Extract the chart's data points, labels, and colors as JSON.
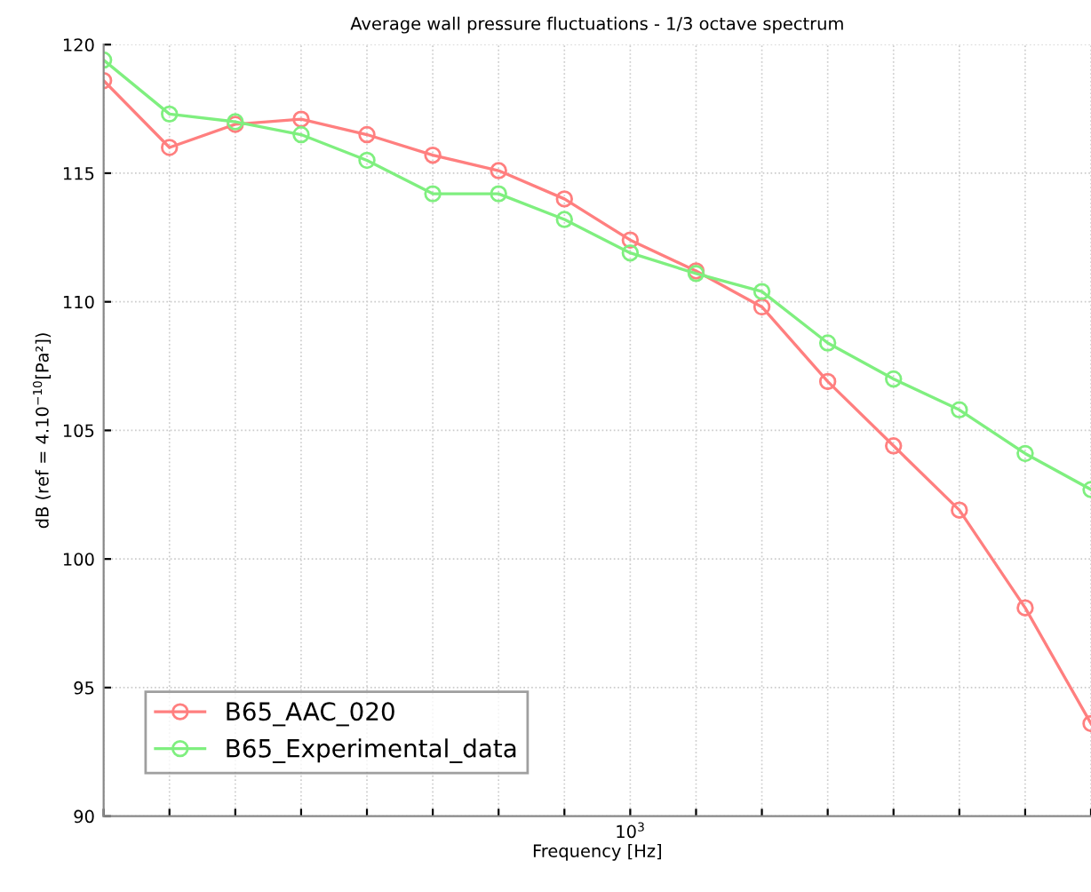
{
  "chart_data": {
    "type": "line",
    "title": "Average wall pressure fluctuations - 1/3 octave spectrum",
    "xlabel": "Frequency [Hz]",
    "ylabel": "dB (ref = 4.10$^{−10}$[Pa²])",
    "categories": [
      null,
      null,
      null,
      null,
      null,
      null,
      null,
      null,
      "10$^{3}$",
      null,
      null,
      null,
      null,
      null,
      null,
      null
    ],
    "series": [
      {
        "name": "B65_AAC_020",
        "color": "#ff7f7f",
        "values": [
          118.6,
          116.0,
          116.9,
          117.1,
          116.5,
          115.7,
          115.1,
          114.0,
          112.4,
          111.2,
          109.8,
          106.9,
          104.4,
          101.9,
          98.1,
          93.6
        ]
      },
      {
        "name": "B65_Experimental_data",
        "color": "#7fef7f",
        "values": [
          119.4,
          117.3,
          117.0,
          116.5,
          115.5,
          114.2,
          114.2,
          113.2,
          111.9,
          111.1,
          110.4,
          108.4,
          107.0,
          105.8,
          104.1,
          102.7
        ]
      }
    ],
    "ylim": [
      90,
      120
    ],
    "yticks": [
      90,
      95,
      100,
      105,
      110,
      115,
      120
    ],
    "grid": true,
    "legend": "bottom left",
    "marker": "circle",
    "line_style": "solid"
  }
}
